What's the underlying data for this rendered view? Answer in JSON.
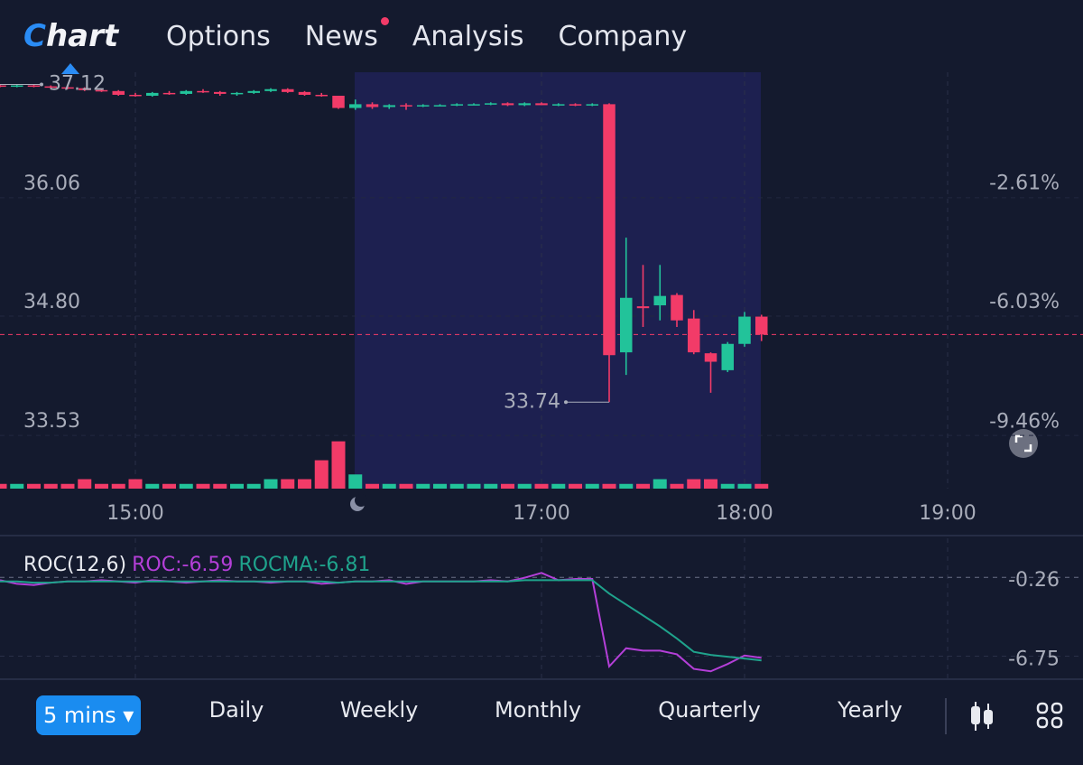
{
  "nav": {
    "logo": "Chart",
    "items": [
      "Options",
      "News",
      "Analysis",
      "Company"
    ]
  },
  "chart_data": [
    {
      "type": "candlestick",
      "categories": [
        null,
        null,
        null,
        null,
        null,
        null,
        null,
        null,
        null,
        null,
        null,
        null,
        null,
        null,
        null,
        null,
        null,
        null,
        null,
        null,
        null,
        null,
        null,
        null,
        null,
        null,
        null,
        null,
        null,
        null,
        null,
        null,
        null,
        null,
        null,
        null,
        null,
        null,
        null,
        null,
        null,
        null,
        null,
        null,
        null,
        null
      ],
      "open": [
        37.11,
        37.1,
        37.11,
        37.1,
        37.09,
        37.08,
        37.06,
        37.05,
        37.01,
        37.0,
        37.03,
        37.02,
        37.05,
        37.04,
        37.02,
        37.03,
        37.05,
        37.07,
        37.04,
        37.01,
        37.0,
        36.87,
        36.91,
        36.88,
        36.9,
        36.89,
        36.9,
        36.9,
        36.91,
        36.91,
        36.92,
        36.9,
        36.92,
        36.9,
        36.91,
        36.9,
        36.91,
        34.27,
        34.76,
        34.77,
        34.88,
        34.63,
        34.26,
        34.08,
        34.36,
        34.65
      ],
      "high": [
        37.12,
        37.12,
        37.12,
        37.11,
        37.1,
        37.09,
        37.07,
        37.06,
        37.03,
        37.04,
        37.05,
        37.06,
        37.07,
        37.05,
        37.04,
        37.06,
        37.08,
        37.08,
        37.05,
        37.03,
        37.0,
        36.96,
        36.93,
        36.91,
        36.92,
        36.91,
        36.91,
        36.92,
        36.92,
        36.93,
        36.93,
        36.93,
        36.93,
        36.92,
        36.92,
        36.92,
        36.92,
        35.49,
        35.2,
        35.2,
        34.9,
        34.72,
        34.27,
        34.38,
        34.7,
        34.67
      ],
      "low": [
        37.09,
        37.09,
        37.09,
        37.08,
        37.07,
        37.05,
        37.04,
        37.0,
        36.99,
        36.99,
        37.01,
        37.01,
        37.03,
        37.0,
        37.0,
        37.02,
        37.04,
        37.03,
        37.0,
        36.99,
        36.86,
        36.85,
        36.86,
        36.86,
        36.85,
        36.88,
        36.89,
        36.89,
        36.9,
        36.9,
        36.89,
        36.89,
        36.9,
        36.89,
        36.89,
        36.89,
        33.74,
        34.03,
        34.54,
        34.61,
        34.54,
        34.25,
        33.84,
        34.06,
        34.33,
        34.39
      ],
      "close": [
        37.1,
        37.11,
        37.1,
        37.09,
        37.08,
        37.06,
        37.05,
        37.01,
        37.0,
        37.03,
        37.02,
        37.05,
        37.04,
        37.02,
        37.03,
        37.05,
        37.07,
        37.04,
        37.01,
        37.0,
        36.87,
        36.91,
        36.88,
        36.9,
        36.89,
        36.9,
        36.9,
        36.91,
        36.91,
        36.92,
        36.9,
        36.92,
        36.9,
        36.91,
        36.9,
        36.91,
        34.24,
        34.85,
        34.74,
        34.87,
        34.61,
        34.27,
        34.17,
        34.36,
        34.65,
        34.46
      ],
      "up_color": "#22c39a",
      "down_color": "#f23b68",
      "xlim": [
        0,
        64
      ],
      "xticks": [
        {
          "value": 8,
          "label": "15:00"
        },
        {
          "value": 32,
          "label": "17:00"
        },
        {
          "value": 44,
          "label": "18:00"
        },
        {
          "value": 56,
          "label": "19:00"
        }
      ],
      "ylim": [
        32.82,
        37.25
      ],
      "yticks": [
        33.53,
        {
          "value": 34.8,
          "label": "34.80"
        },
        36.06
      ],
      "y2lim": [
        -11.37,
        0.59
      ],
      "y2ticks": [
        {
          "value": -2.61,
          "label": "-2.61%"
        },
        {
          "value": -6.03,
          "label": "-6.03%"
        },
        {
          "value": -9.46,
          "label": "-9.46%"
        }
      ],
      "grid": true
    },
    {
      "type": "bar",
      "values": [
        1,
        1,
        1,
        1,
        1,
        2,
        1,
        1,
        2,
        1,
        1,
        1,
        1,
        1,
        1,
        1,
        2,
        2,
        2,
        6,
        10,
        3,
        1,
        1,
        1,
        1,
        1,
        1,
        1,
        1,
        1,
        1,
        1,
        1,
        1,
        1,
        1,
        1,
        1,
        2,
        1,
        2,
        2,
        1,
        1,
        1
      ],
      "xlim": [
        0,
        64
      ],
      "ylim": [
        0,
        10.5
      ]
    },
    {
      "type": "line",
      "title": "ROC(12,6)",
      "xlim": [
        0,
        64
      ],
      "ylim": [
        -8.35,
        3.25
      ],
      "yticks": [
        -0.26,
        -6.75
      ],
      "series": [
        {
          "name": "ROC:-6.59",
          "color": "#b43fd8",
          "values": [
            -0.2,
            -0.5,
            -0.6,
            -0.4,
            -0.3,
            -0.3,
            -0.2,
            -0.3,
            -0.4,
            -0.2,
            -0.3,
            -0.4,
            -0.3,
            -0.2,
            -0.3,
            -0.3,
            -0.4,
            -0.3,
            -0.3,
            -0.5,
            -0.4,
            -0.3,
            -0.3,
            -0.2,
            -0.5,
            -0.3,
            -0.3,
            -0.3,
            -0.3,
            -0.2,
            -0.3,
            0.0,
            0.4,
            -0.2,
            -0.1,
            -0.1,
            -7.3,
            -5.8,
            -6.0,
            -6.0,
            -6.3,
            -7.5,
            -7.7,
            -7.1,
            -6.4,
            -6.59
          ]
        },
        {
          "name": "ROCMA:-6.81",
          "color": "#1fa38c",
          "values": [
            -0.3,
            -0.3,
            -0.4,
            -0.4,
            -0.3,
            -0.3,
            -0.3,
            -0.3,
            -0.3,
            -0.3,
            -0.3,
            -0.3,
            -0.3,
            -0.3,
            -0.3,
            -0.3,
            -0.3,
            -0.3,
            -0.3,
            -0.3,
            -0.4,
            -0.3,
            -0.3,
            -0.3,
            -0.3,
            -0.3,
            -0.3,
            -0.3,
            -0.3,
            -0.3,
            -0.3,
            -0.2,
            -0.2,
            -0.2,
            -0.2,
            -0.2,
            -1.3,
            -2.2,
            -3.1,
            -4.0,
            -5.0,
            -6.1,
            -6.35,
            -6.5,
            -6.65,
            -6.81
          ]
        }
      ]
    }
  ],
  "toolbar": {
    "intervals": [
      "5 mins",
      "Daily",
      "Weekly",
      "Monthly",
      "Quarterly",
      "Yearly"
    ]
  }
}
